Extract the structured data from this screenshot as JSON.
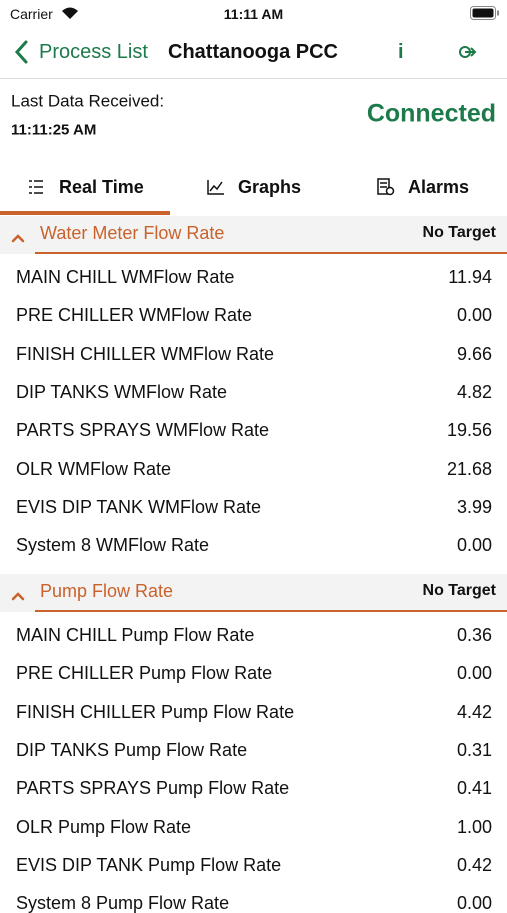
{
  "status_bar": {
    "carrier": "Carrier",
    "time": "11:11 AM"
  },
  "nav": {
    "back": "Process List",
    "title": "Chattanooga PCC",
    "info": "i"
  },
  "status": {
    "label": "Last Data Received:",
    "time": "11:11:25 AM",
    "connection": "Connected"
  },
  "tabs": [
    "Real Time",
    "Graphs",
    "Alarms"
  ],
  "sections": [
    {
      "title": "Water Meter Flow Rate",
      "target": "No Target",
      "rows": [
        [
          "MAIN CHILL WMFlow Rate",
          "11.94"
        ],
        [
          "PRE CHILLER WMFlow Rate",
          "0.00"
        ],
        [
          "FINISH CHILLER WMFlow Rate",
          "9.66"
        ],
        [
          "DIP TANKS WMFlow Rate",
          "4.82"
        ],
        [
          "PARTS SPRAYS WMFlow Rate",
          "19.56"
        ],
        [
          "OLR WMFlow Rate",
          "21.68"
        ],
        [
          "EVIS DIP TANK WMFlow Rate",
          "3.99"
        ],
        [
          "System 8 WMFlow Rate",
          "0.00"
        ]
      ]
    },
    {
      "title": "Pump Flow Rate",
      "target": "No Target",
      "rows": [
        [
          "MAIN CHILL Pump Flow Rate",
          "0.36"
        ],
        [
          "PRE CHILLER Pump Flow Rate",
          "0.00"
        ],
        [
          "FINISH CHILLER Pump Flow Rate",
          "4.42"
        ],
        [
          "DIP TANKS Pump Flow Rate",
          "0.31"
        ],
        [
          "PARTS SPRAYS Pump Flow Rate",
          "0.41"
        ],
        [
          "OLR Pump Flow Rate",
          "1.00"
        ],
        [
          "EVIS DIP TANK Pump Flow Rate",
          "0.42"
        ],
        [
          "System 8 Pump Flow Rate",
          "0.00"
        ]
      ]
    }
  ]
}
